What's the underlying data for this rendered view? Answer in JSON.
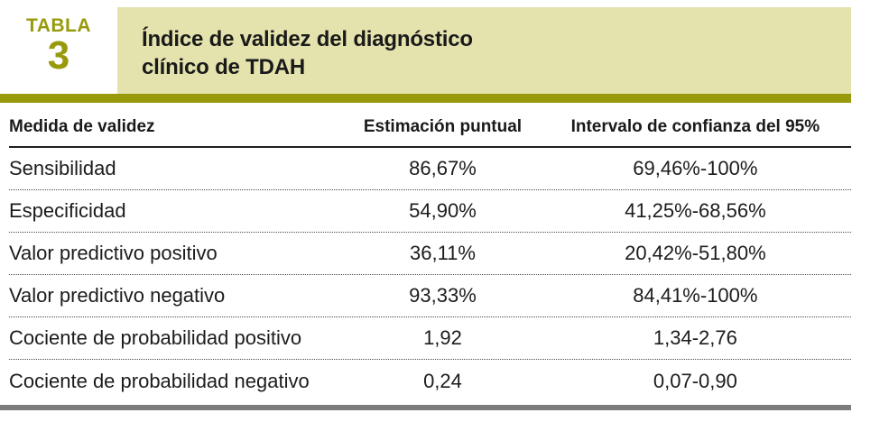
{
  "header": {
    "tabla_label": "TABLA",
    "tabla_number": "3",
    "title_line1": "Índice de validez del diagnóstico",
    "title_line2": "clínico de TDAH"
  },
  "table": {
    "columns": [
      "Medida de validez",
      "Estimación puntual",
      "Intervalo de confianza del 95%"
    ],
    "rows": [
      {
        "measure": "Sensibilidad",
        "estimate": "86,67%",
        "ci": "69,46%-100%"
      },
      {
        "measure": "Especificidad",
        "estimate": "54,90%",
        "ci": "41,25%-68,56%"
      },
      {
        "measure": "Valor predictivo positivo",
        "estimate": "36,11%",
        "ci": "20,42%-51,80%"
      },
      {
        "measure": "Valor predictivo negativo",
        "estimate": "93,33%",
        "ci": "84,41%-100%"
      },
      {
        "measure": "Cociente de probabilidad positivo",
        "estimate": "1,92",
        "ci": "1,34-2,76"
      },
      {
        "measure": "Cociente de probabilidad negativo",
        "estimate": "0,24",
        "ci": "0,07-0,90"
      }
    ]
  },
  "colors": {
    "olive": "#989a0c",
    "khaki": "#e4e3ad",
    "bar_gray": "#7c7c7c",
    "text_dark": "#1a1a1a"
  }
}
